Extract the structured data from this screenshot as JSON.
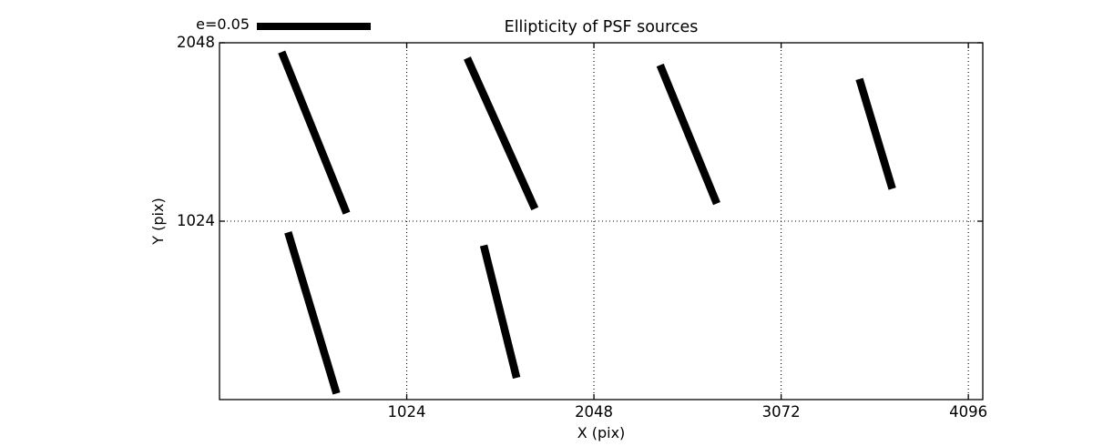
{
  "chart_data": {
    "type": "line",
    "subtype": "ellipticity-whisker-quiver",
    "title": "Ellipticity of PSF sources",
    "xlabel": "X (pix)",
    "ylabel": "Y (pix)",
    "xlim": [
      0,
      4175
    ],
    "ylim": [
      0,
      2048
    ],
    "xticks": [
      1024,
      2048,
      3072,
      4096
    ],
    "yticks": [
      1024,
      2048
    ],
    "grid": true,
    "grid_style": "dotted",
    "legend": {
      "label": "e=0.05",
      "position": "top-left-above-axes"
    },
    "series": [
      {
        "name": "psf-ellipticity-whiskers",
        "segments": [
          {
            "x1": 340,
            "y1": 1995,
            "x2": 695,
            "y2": 1070
          },
          {
            "x1": 1355,
            "y1": 1960,
            "x2": 1725,
            "y2": 1095
          },
          {
            "x1": 2410,
            "y1": 1920,
            "x2": 2720,
            "y2": 1125
          },
          {
            "x1": 3500,
            "y1": 1840,
            "x2": 3680,
            "y2": 1210
          },
          {
            "x1": 375,
            "y1": 960,
            "x2": 640,
            "y2": 35
          },
          {
            "x1": 1445,
            "y1": 885,
            "x2": 1625,
            "y2": 125
          }
        ]
      }
    ],
    "colors": {
      "foreground": "#000000",
      "background": "#ffffff"
    }
  }
}
